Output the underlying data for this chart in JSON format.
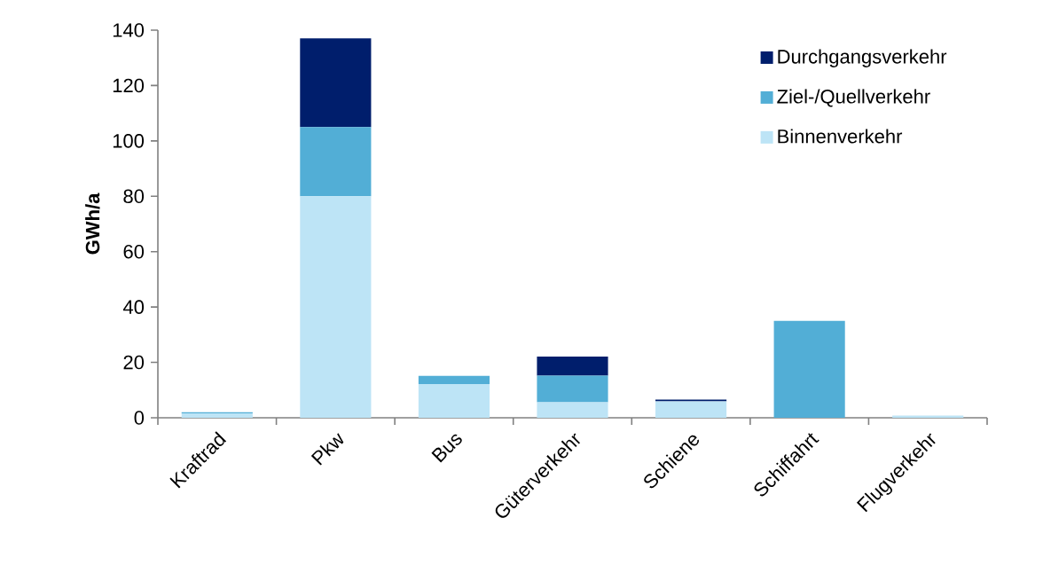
{
  "chart_data": {
    "type": "bar",
    "stacked": true,
    "ylabel": "GWh/a",
    "categories": [
      "Kraftrad",
      "Pkw",
      "Bus",
      "Güterverkehr",
      "Schiene",
      "Schiffahrt",
      "Flugverkehr"
    ],
    "series": [
      {
        "name": "Binnenverkehr",
        "color": "#bde4f6",
        "values": [
          1.6,
          80,
          12.2,
          5.6,
          5.9,
          0,
          0.8
        ]
      },
      {
        "name": "Ziel-/Quellverkehr",
        "color": "#52aed6",
        "values": [
          0.4,
          25,
          2.9,
          9.6,
          0,
          35,
          0
        ]
      },
      {
        "name": "Durchgangsverkehr",
        "color": "#001e6c",
        "values": [
          0,
          32,
          0,
          6.9,
          0.7,
          0,
          0
        ]
      }
    ],
    "ylim": [
      0,
      140
    ],
    "yticks": [
      0,
      20,
      40,
      60,
      80,
      100,
      120,
      140
    ],
    "grid": false,
    "legend": "top right"
  }
}
